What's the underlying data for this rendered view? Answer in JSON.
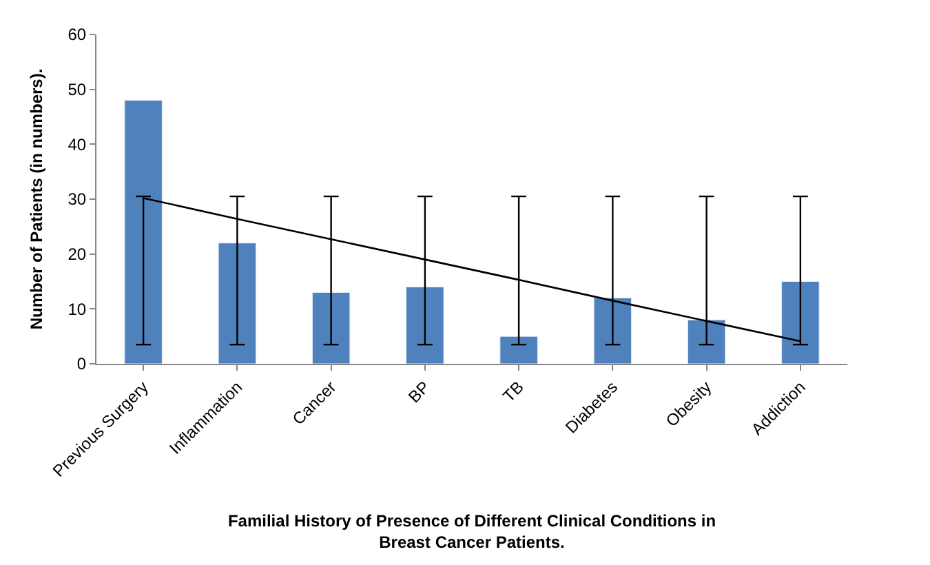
{
  "chart_data": {
    "type": "bar",
    "xlabel": "Familial History of Presence of Different Clinical Conditions in Breast Cancer Patients.",
    "ylabel": "Number of Patients (in numbers).",
    "categories": [
      "Previous Surgery",
      "Inflammation",
      "Cancer",
      "BP",
      "TB",
      "Diabetes",
      "Obesity",
      "Addiction"
    ],
    "ylim": [
      0,
      60
    ],
    "yticks": [
      0,
      10,
      20,
      30,
      40,
      50,
      60
    ],
    "grid": false,
    "series": [
      {
        "color": "#4f81bd",
        "values": [
          48,
          22,
          13,
          14,
          5,
          12,
          8,
          15
        ],
        "errors": [
          [
            3.5,
            30.5
          ],
          [
            3.5,
            30.5
          ],
          [
            3.5,
            30.5
          ],
          [
            3.5,
            30.5
          ],
          [
            3.5,
            30.5
          ],
          [
            3.5,
            30.5
          ],
          [
            3.5,
            30.5
          ],
          [
            3.5,
            30.5
          ]
        ]
      },
      {
        "type": "line",
        "color": "#000000",
        "marker": "none",
        "line_style": "solid",
        "values": [
          30.2,
          26.4,
          22.7,
          19.0,
          15.3,
          11.5,
          7.8,
          4.1
        ]
      }
    ]
  }
}
